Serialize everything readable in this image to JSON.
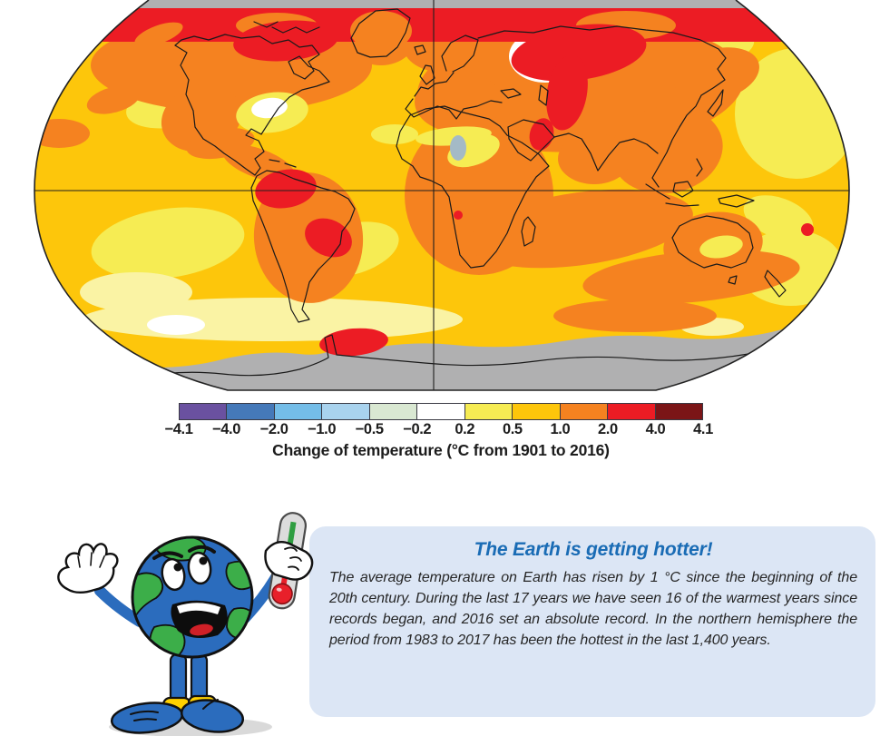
{
  "palette": {
    "amber": "#FDC60B",
    "yellow": "#F6EC53",
    "paleyellow": "#FAF3A4",
    "orange": "#F58220",
    "red": "#EC1C24",
    "darkred": "#7B1517",
    "purple": "#6A51A0",
    "blue": "#4579B9",
    "lightblue": "#74BDE8",
    "paleblue": "#A9D3EE",
    "palegreen": "#D9E8D2",
    "white": "#FFFFFF",
    "gray": "#B0B0B1",
    "bluegray": "#A4BAC6"
  },
  "map": {
    "type": "choropleth-world-map",
    "projection": "robinson",
    "description_of_colors": "temperature change anomaly shading over world map",
    "ocean_base_color": "#FDC60B",
    "no_data_color": "#B0B0B1",
    "outline_color": "#1A1A1A",
    "legend": {
      "tick_labels": [
        "−4.1",
        "−4.0",
        "−2.0",
        "−1.0",
        "−0.5",
        "−0.2",
        "0.2",
        "0.5",
        "1.0",
        "2.0",
        "4.0",
        "4.1"
      ],
      "colors": [
        "#6A51A0",
        "#4579B9",
        "#74BDE8",
        "#A9D3EE",
        "#D9E8D2",
        "#FFFFFF",
        "#F6EC53",
        "#FDC60B",
        "#F58220",
        "#EC1C24",
        "#7B1517"
      ],
      "caption": "Change of temperature (°C from 1901 to 2016)"
    }
  },
  "infobox": {
    "background": "#dce6f5",
    "title": "The Earth is getting hotter!",
    "title_color": "#1a6cb5",
    "body": "The average temperature on Earth has risen by 1 °C since the beginning of the 20th century. During the last 17 years we have seen 16 of the warmest years since records began, and 2016 set an absolute record. In the northern hemisphere the period from 1983 to 2017 has been the hottest in the last 1,400 years."
  },
  "mascot": {
    "name": "worried-earth-with-thermometer",
    "globe_blue": "#2B6CBD",
    "land_green": "#3CAE49",
    "cuff_yellow": "#FFD100",
    "thermometer_red": "#E8202A",
    "thermometer_green": "#2F9E41"
  }
}
